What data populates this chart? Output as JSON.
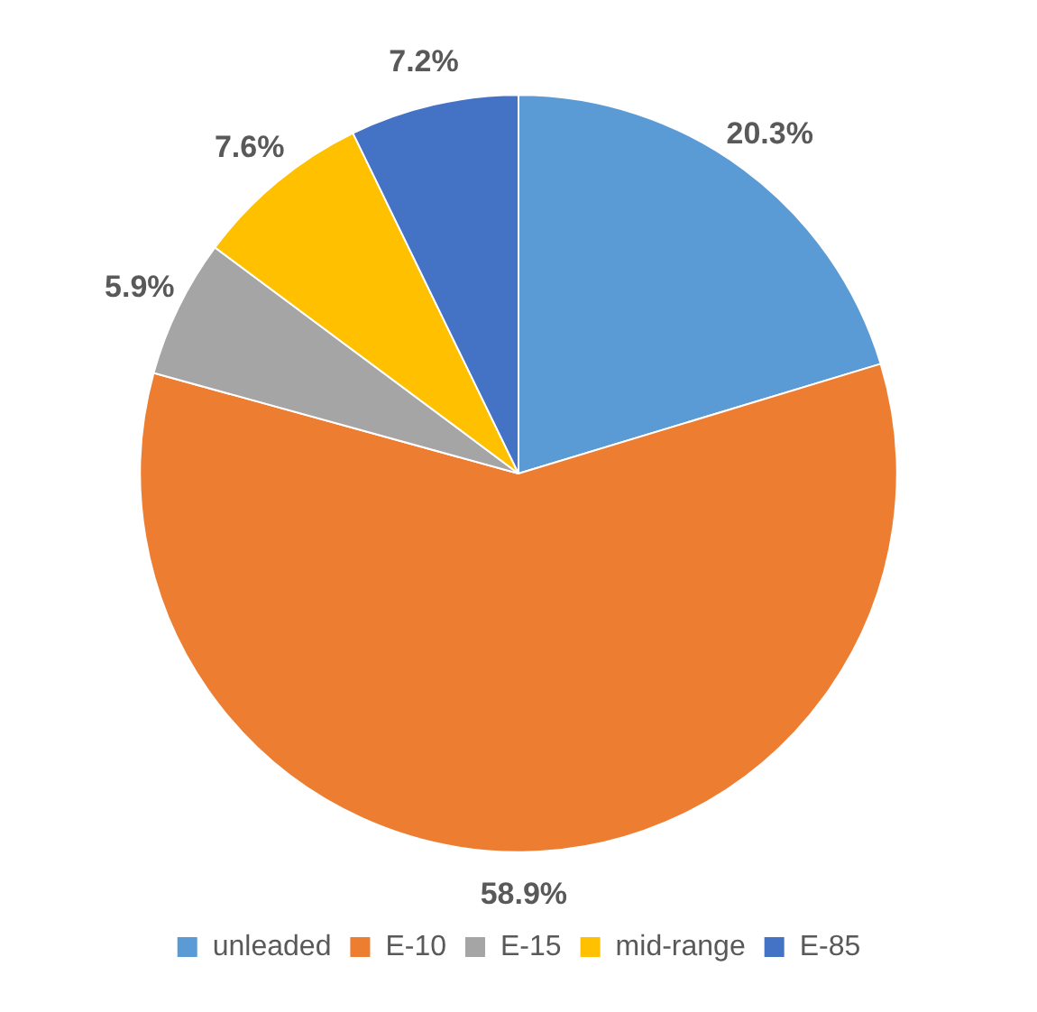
{
  "chart_data": {
    "type": "pie",
    "categories": [
      "unleaded",
      "E-10",
      "E-15",
      "mid-range",
      "E-85"
    ],
    "values": [
      20.3,
      58.9,
      5.9,
      7.6,
      7.2
    ],
    "colors": [
      "#5b9bd5",
      "#ed7d31",
      "#a5a5a5",
      "#ffc000",
      "#4472c4"
    ],
    "value_labels": [
      "20.3%",
      "58.9%",
      "5.9%",
      "7.6%",
      "7.2%"
    ],
    "legend": "bottom"
  }
}
